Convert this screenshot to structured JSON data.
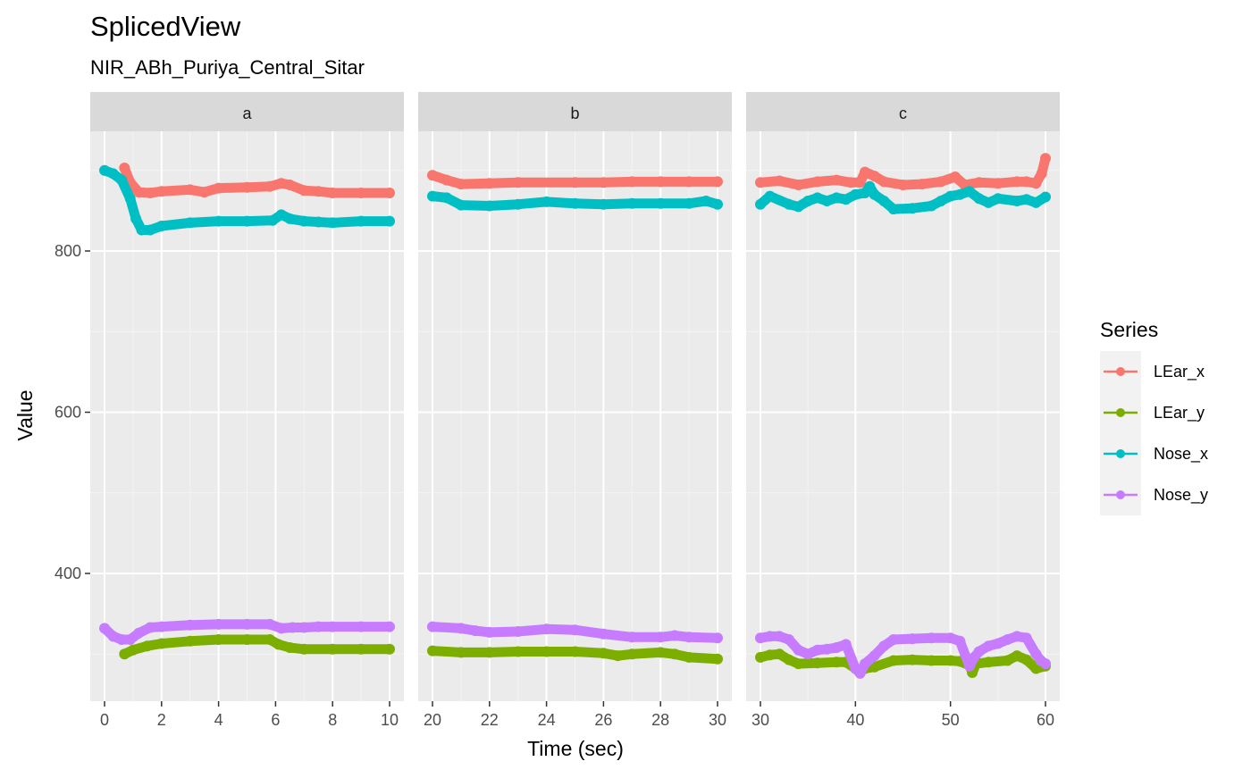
{
  "title": "SplicedView",
  "subtitle": "NIR_ABh_Puriya_Central_Sitar",
  "xlabel": "Time (sec)",
  "ylabel": "Value",
  "legend": {
    "title": "Series",
    "placement": "right",
    "items": [
      {
        "name": "LEar_x",
        "color": "#F8766D"
      },
      {
        "name": "LEar_y",
        "color": "#7CAE00"
      },
      {
        "name": "Nose_x",
        "color": "#00BFC4"
      },
      {
        "name": "Nose_y",
        "color": "#C77CFF"
      }
    ]
  },
  "chart_data": {
    "type": "line",
    "grid": true,
    "facets": [
      {
        "label": "a",
        "xlim": [
          0,
          10
        ],
        "xticks": [
          0,
          2,
          4,
          6,
          8,
          10
        ]
      },
      {
        "label": "b",
        "xlim": [
          20,
          30
        ],
        "xticks": [
          20,
          22,
          24,
          26,
          28,
          30
        ]
      },
      {
        "label": "c",
        "xlim": [
          30,
          60
        ],
        "xticks": [
          30,
          40,
          50,
          60
        ]
      }
    ],
    "ylim": [
      250,
      950
    ],
    "yticks": [
      400,
      600,
      800
    ],
    "series": [
      {
        "name": "LEar_x",
        "color": "#F8766D",
        "facets": [
          [
            [
              0.7,
              903
            ],
            [
              0.9,
              885
            ],
            [
              1.2,
              873
            ],
            [
              1.6,
              872
            ],
            [
              2,
              874
            ],
            [
              3,
              876
            ],
            [
              3.5,
              873
            ],
            [
              4,
              878
            ],
            [
              5,
              879
            ],
            [
              5.8,
              880
            ],
            [
              6.2,
              884
            ],
            [
              6.5,
              882
            ],
            [
              7,
              875
            ],
            [
              7.5,
              874
            ],
            [
              8,
              872
            ],
            [
              9,
              872
            ],
            [
              10,
              872
            ]
          ],
          [
            [
              20,
              894
            ],
            [
              20.5,
              888
            ],
            [
              21,
              883
            ],
            [
              22,
              884
            ],
            [
              23,
              885
            ],
            [
              25,
              885
            ],
            [
              26,
              885
            ],
            [
              27,
              886
            ],
            [
              28,
              886
            ],
            [
              29,
              886
            ],
            [
              30,
              886
            ]
          ],
          [
            [
              30,
              885
            ],
            [
              32,
              887
            ],
            [
              34,
              882
            ],
            [
              36,
              886
            ],
            [
              38,
              888
            ],
            [
              39.5,
              885
            ],
            [
              40.5,
              885
            ],
            [
              41,
              898
            ],
            [
              42,
              893
            ],
            [
              43,
              886
            ],
            [
              45,
              882
            ],
            [
              47,
              883
            ],
            [
              49,
              886
            ],
            [
              50.5,
              892
            ],
            [
              51.5,
              882
            ],
            [
              53,
              885
            ],
            [
              55,
              884
            ],
            [
              57,
              886
            ],
            [
              58,
              886
            ],
            [
              59,
              884
            ],
            [
              59.6,
              896
            ],
            [
              60,
              915
            ]
          ]
        ]
      },
      {
        "name": "LEar_y",
        "color": "#7CAE00",
        "facets": [
          [
            [
              0.7,
              300
            ],
            [
              1,
              305
            ],
            [
              1.5,
              310
            ],
            [
              2,
              313
            ],
            [
              3,
              316
            ],
            [
              4,
              318
            ],
            [
              5,
              318
            ],
            [
              5.8,
              318
            ],
            [
              6.1,
              312
            ],
            [
              6.5,
              308
            ],
            [
              7,
              306
            ],
            [
              8,
              306
            ],
            [
              9,
              306
            ],
            [
              10,
              306
            ]
          ],
          [
            [
              20,
              304
            ],
            [
              21,
              302
            ],
            [
              22,
              302
            ],
            [
              23,
              303
            ],
            [
              24,
              303
            ],
            [
              25,
              303
            ],
            [
              26,
              301
            ],
            [
              26.5,
              298
            ],
            [
              27,
              300
            ],
            [
              28,
              302
            ],
            [
              28.5,
              300
            ],
            [
              29,
              296
            ],
            [
              30,
              294
            ]
          ],
          [
            [
              30,
              296
            ],
            [
              31,
              299
            ],
            [
              32,
              300
            ],
            [
              33,
              293
            ],
            [
              34,
              288
            ],
            [
              36,
              289
            ],
            [
              38,
              290
            ],
            [
              39,
              290
            ],
            [
              40,
              282
            ],
            [
              40.5,
              278
            ],
            [
              41,
              282
            ],
            [
              42,
              284
            ],
            [
              44,
              292
            ],
            [
              46,
              293
            ],
            [
              48,
              292
            ],
            [
              50,
              292
            ],
            [
              51,
              291
            ],
            [
              52,
              286
            ],
            [
              52.3,
              277
            ],
            [
              52.7,
              288
            ],
            [
              54,
              290
            ],
            [
              56,
              292
            ],
            [
              57,
              298
            ],
            [
              58,
              293
            ],
            [
              59,
              282
            ],
            [
              60,
              285
            ]
          ]
        ]
      },
      {
        "name": "Nose_x",
        "color": "#00BFC4",
        "facets": [
          [
            [
              0,
              900
            ],
            [
              0.3,
              896
            ],
            [
              0.6,
              888
            ],
            [
              0.9,
              865
            ],
            [
              1.1,
              840
            ],
            [
              1.3,
              826
            ],
            [
              1.6,
              826
            ],
            [
              2,
              831
            ],
            [
              3,
              835
            ],
            [
              4,
              837
            ],
            [
              5,
              837
            ],
            [
              5.9,
              838
            ],
            [
              6.2,
              845
            ],
            [
              6.5,
              840
            ],
            [
              7,
              837
            ],
            [
              7.5,
              836
            ],
            [
              8,
              835
            ],
            [
              9,
              837
            ],
            [
              10,
              837
            ]
          ],
          [
            [
              20,
              868
            ],
            [
              20.5,
              866
            ],
            [
              21,
              857
            ],
            [
              22,
              856
            ],
            [
              23,
              858
            ],
            [
              24,
              861
            ],
            [
              25,
              859
            ],
            [
              26,
              858
            ],
            [
              27,
              859
            ],
            [
              28,
              859
            ],
            [
              29,
              859
            ],
            [
              29.6,
              862
            ],
            [
              30,
              858
            ]
          ],
          [
            [
              30,
              858
            ],
            [
              31,
              868
            ],
            [
              33,
              858
            ],
            [
              34,
              855
            ],
            [
              35,
              862
            ],
            [
              36,
              866
            ],
            [
              37,
              862
            ],
            [
              38,
              866
            ],
            [
              39,
              864
            ],
            [
              40,
              870
            ],
            [
              41,
              872
            ],
            [
              41.5,
              880
            ],
            [
              42,
              870
            ],
            [
              43,
              862
            ],
            [
              44,
              852
            ],
            [
              46,
              853
            ],
            [
              48,
              856
            ],
            [
              49,
              862
            ],
            [
              50,
              868
            ],
            [
              51,
              870
            ],
            [
              52,
              874
            ],
            [
              53,
              865
            ],
            [
              54,
              860
            ],
            [
              55,
              865
            ],
            [
              57,
              862
            ],
            [
              58,
              864
            ],
            [
              59,
              860
            ],
            [
              60,
              867
            ]
          ]
        ]
      },
      {
        "name": "Nose_y",
        "color": "#C77CFF",
        "facets": [
          [
            [
              0,
              332
            ],
            [
              0.3,
              322
            ],
            [
              0.6,
              318
            ],
            [
              0.9,
              318
            ],
            [
              1.2,
              326
            ],
            [
              1.6,
              333
            ],
            [
              2,
              334
            ],
            [
              3,
              336
            ],
            [
              4,
              337
            ],
            [
              5,
              337
            ],
            [
              5.8,
              337
            ],
            [
              6.2,
              332
            ],
            [
              6.6,
              333
            ],
            [
              7,
              333
            ],
            [
              7.5,
              334
            ],
            [
              8,
              334
            ],
            [
              9,
              334
            ],
            [
              10,
              334
            ]
          ],
          [
            [
              20,
              334
            ],
            [
              21,
              332
            ],
            [
              21.5,
              329
            ],
            [
              22,
              327
            ],
            [
              23,
              328
            ],
            [
              24,
              331
            ],
            [
              25,
              330
            ],
            [
              26,
              325
            ],
            [
              27,
              321
            ],
            [
              28,
              321
            ],
            [
              28.5,
              323
            ],
            [
              29,
              321
            ],
            [
              30,
              320
            ]
          ],
          [
            [
              30,
              320
            ],
            [
              31,
              322
            ],
            [
              32,
              322
            ],
            [
              33,
              318
            ],
            [
              34,
              305
            ],
            [
              35,
              300
            ],
            [
              36,
              305
            ],
            [
              37,
              306
            ],
            [
              38,
              308
            ],
            [
              39,
              312
            ],
            [
              40,
              282
            ],
            [
              40.5,
              276
            ],
            [
              41,
              288
            ],
            [
              42,
              298
            ],
            [
              43,
              310
            ],
            [
              44,
              318
            ],
            [
              46,
              319
            ],
            [
              48,
              320
            ],
            [
              50,
              320
            ],
            [
              51,
              316
            ],
            [
              52,
              285
            ],
            [
              52.5,
              296
            ],
            [
              53,
              303
            ],
            [
              54,
              310
            ],
            [
              55,
              313
            ],
            [
              56,
              318
            ],
            [
              57,
              322
            ],
            [
              58,
              320
            ],
            [
              59,
              300
            ],
            [
              59.5,
              292
            ],
            [
              60,
              288
            ]
          ]
        ]
      }
    ]
  }
}
